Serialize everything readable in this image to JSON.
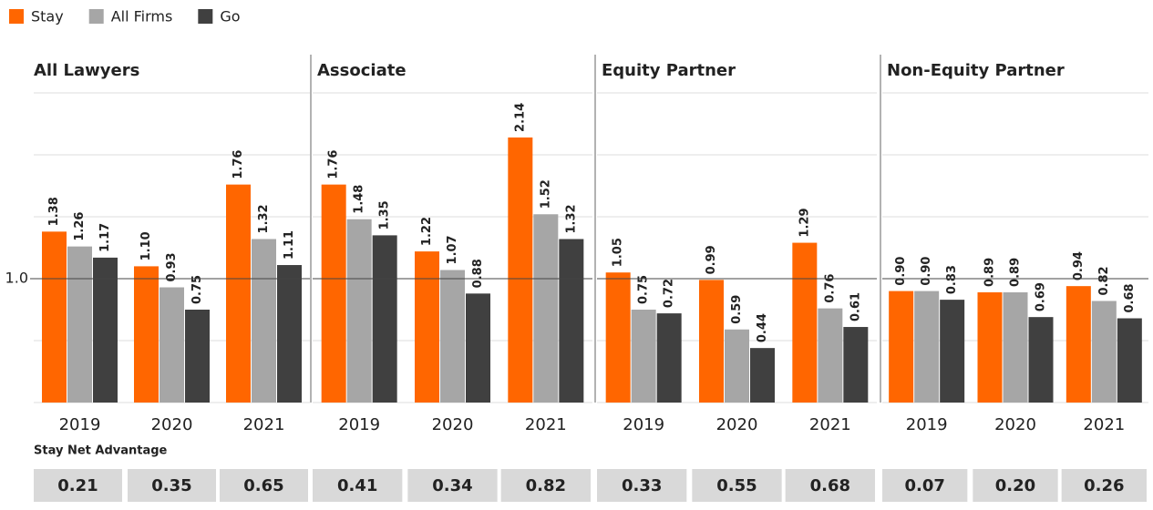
{
  "chart_data": [
    {
      "type": "bar",
      "title": "All Lawyers",
      "categories": [
        "2019",
        "2020",
        "2021"
      ],
      "series": [
        {
          "name": "Stay",
          "color": "#ff6600",
          "values": [
            1.38,
            1.1,
            1.76
          ],
          "value_labels": [
            "1.38",
            "1.10",
            "1.76"
          ]
        },
        {
          "name": "All Firms",
          "color": "#a6a6a6",
          "values": [
            1.26,
            0.93,
            1.32
          ],
          "value_labels": [
            "1.26",
            "0.93",
            "1.32"
          ]
        },
        {
          "name": "Go",
          "color": "#404040",
          "values": [
            1.17,
            0.75,
            1.11
          ],
          "value_labels": [
            "1.17",
            "0.75",
            "1.11"
          ]
        }
      ],
      "ylim": [
        0,
        2.5
      ],
      "yticks": [
        {
          "value": 1,
          "label": "1.0"
        }
      ],
      "reference_line": 1,
      "gridlines": [
        0,
        0.5,
        1.5,
        2,
        2.5
      ],
      "net_advantage": {
        "values": [
          0.21,
          0.35,
          0.65
        ],
        "value_labels": [
          "0.21",
          "0.35",
          "0.65"
        ]
      }
    },
    {
      "type": "bar",
      "title": "Associate",
      "categories": [
        "2019",
        "2020",
        "2021"
      ],
      "series": [
        {
          "name": "Stay",
          "color": "#ff6600",
          "values": [
            1.76,
            1.22,
            2.14
          ],
          "value_labels": [
            "1.76",
            "1.22",
            "2.14"
          ]
        },
        {
          "name": "All Firms",
          "color": "#a6a6a6",
          "values": [
            1.48,
            1.07,
            1.52
          ],
          "value_labels": [
            "1.48",
            "1.07",
            "1.52"
          ]
        },
        {
          "name": "Go",
          "color": "#404040",
          "values": [
            1.35,
            0.88,
            1.32
          ],
          "value_labels": [
            "1.35",
            "0.88",
            "1.32"
          ]
        }
      ],
      "ylim": [
        0,
        2.5
      ],
      "reference_line": 1,
      "gridlines": [
        0,
        0.5,
        1.5,
        2,
        2.5
      ],
      "net_advantage": {
        "values": [
          0.41,
          0.34,
          0.82
        ],
        "value_labels": [
          "0.41",
          "0.34",
          "0.82"
        ]
      }
    },
    {
      "type": "bar",
      "title": "Equity Partner",
      "categories": [
        "2019",
        "2020",
        "2021"
      ],
      "series": [
        {
          "name": "Stay",
          "color": "#ff6600",
          "values": [
            1.05,
            0.99,
            1.29
          ],
          "value_labels": [
            "1.05",
            "0.99",
            "1.29"
          ]
        },
        {
          "name": "All Firms",
          "color": "#a6a6a6",
          "values": [
            0.75,
            0.59,
            0.76
          ],
          "value_labels": [
            "0.75",
            "0.59",
            "0.76"
          ]
        },
        {
          "name": "Go",
          "color": "#404040",
          "values": [
            0.72,
            0.44,
            0.61
          ],
          "value_labels": [
            "0.72",
            "0.44",
            "0.61"
          ]
        }
      ],
      "ylim": [
        0,
        2.5
      ],
      "reference_line": 1,
      "gridlines": [
        0,
        0.5,
        1.5,
        2,
        2.5
      ],
      "net_advantage": {
        "values": [
          0.33,
          0.55,
          0.68
        ],
        "value_labels": [
          "0.33",
          "0.55",
          "0.68"
        ]
      }
    },
    {
      "type": "bar",
      "title": "Non-Equity Partner",
      "categories": [
        "2019",
        "2020",
        "2021"
      ],
      "series": [
        {
          "name": "Stay",
          "color": "#ff6600",
          "values": [
            0.9,
            0.89,
            0.94
          ],
          "value_labels": [
            "0.90",
            "0.89",
            "0.94"
          ]
        },
        {
          "name": "All Firms",
          "color": "#a6a6a6",
          "values": [
            0.9,
            0.89,
            0.82
          ],
          "value_labels": [
            "0.90",
            "0.89",
            "0.82"
          ]
        },
        {
          "name": "Go",
          "color": "#404040",
          "values": [
            0.83,
            0.69,
            0.68
          ],
          "value_labels": [
            "0.83",
            "0.69",
            "0.68"
          ]
        }
      ],
      "ylim": [
        0,
        2.5
      ],
      "reference_line": 1,
      "gridlines": [
        0,
        0.5,
        1.5,
        2,
        2.5
      ],
      "net_advantage": {
        "values": [
          0.07,
          0.2,
          0.26
        ],
        "value_labels": [
          "0.07",
          "0.20",
          "0.26"
        ]
      }
    }
  ],
  "net_advantage_title": "Stay Net Advantage"
}
